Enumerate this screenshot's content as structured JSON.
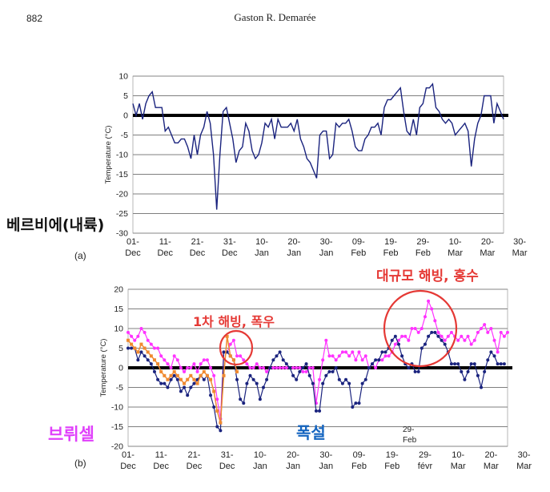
{
  "header": {
    "page_number": "882",
    "author": "Gaston R. Demarée"
  },
  "panel_a": {
    "label": "(a)",
    "ylabel": "Temperature (°C)",
    "annotation_left": "베르비에(내륙)"
  },
  "panel_b": {
    "label": "(b)",
    "ylabel": "Temperature (°C)",
    "annotation_magenta": "브뤼셀",
    "annotation_blue": "폭설",
    "annotation_mid": "1차 해빙, 폭우",
    "annotation_top": "대규모 해빙, 홍수",
    "inset_label_1": "29-",
    "inset_label_2": "Feb"
  },
  "colors": {
    "navy": "#1a237e",
    "magenta": "#ff33ff",
    "orange": "#f08a30",
    "red": "#e53935",
    "blue_text": "#1565c0",
    "magenta_text": "#e040fb"
  },
  "chart_data": [
    {
      "type": "line",
      "title": "",
      "xlabel": "",
      "ylabel": "Temperature (°C)",
      "ylim": [
        -30,
        10
      ],
      "yticks": [
        10,
        5,
        0,
        -5,
        -10,
        -15,
        -20,
        -25,
        -30
      ],
      "xtick_labels": [
        [
          "01-",
          "Dec"
        ],
        [
          "11-",
          "Dec"
        ],
        [
          "21-",
          "Dec"
        ],
        [
          "31-",
          "Dec"
        ],
        [
          "10-",
          "Jan"
        ],
        [
          "20-",
          "Jan"
        ],
        [
          "30-",
          "Jan"
        ],
        [
          "09-",
          "Feb"
        ],
        [
          "19-",
          "Feb"
        ],
        [
          "29-",
          "Feb"
        ],
        [
          "10-",
          "Mar"
        ],
        [
          "20-",
          "Mar"
        ],
        [
          "30-",
          "Mar"
        ]
      ],
      "grid": true,
      "series": [
        {
          "values": [
            3,
            0,
            3,
            -1,
            3,
            5,
            6,
            2,
            2,
            2,
            -4,
            -3,
            -5,
            -7,
            -7,
            -6,
            -6,
            -8,
            -11,
            -5,
            -10,
            -5,
            -3,
            1,
            -2,
            -10,
            -24,
            -10,
            1,
            2,
            -2,
            -6,
            -12,
            -9,
            -8,
            -2,
            -4,
            -9,
            -11,
            -10,
            -7,
            -2,
            -3,
            -1,
            -6,
            -1,
            -3,
            -3,
            -3,
            -2,
            -4,
            -1,
            -6,
            -8,
            -11,
            -12,
            -14,
            -16,
            -5,
            -4,
            -4,
            -11,
            -10,
            -2,
            -3,
            -2,
            -2,
            -1,
            -4,
            -8,
            -9,
            -9,
            -6,
            -5,
            -3,
            -3,
            -2,
            -5,
            2,
            4,
            4,
            5,
            6,
            7,
            1,
            -4,
            -5,
            -1,
            -5,
            2,
            3,
            7,
            7,
            8,
            2,
            1,
            -1,
            -2,
            -1,
            -2,
            -5,
            -4,
            -3,
            -2,
            -4,
            -13,
            -6,
            -2,
            0,
            5,
            5,
            5,
            -2,
            3,
            1,
            -1
          ]
        }
      ]
    },
    {
      "type": "line",
      "title": "",
      "xlabel": "",
      "ylabel": "Temperature (°C)",
      "ylim": [
        -20,
        20
      ],
      "yticks": [
        20,
        15,
        10,
        5,
        0,
        -5,
        -10,
        -15,
        -20
      ],
      "xtick_labels": [
        [
          "01-",
          "Dec"
        ],
        [
          "11-",
          "Dec"
        ],
        [
          "21-",
          "Dec"
        ],
        [
          "31-",
          "Dec"
        ],
        [
          "10-",
          "Jan"
        ],
        [
          "20-",
          "Jan"
        ],
        [
          "30-",
          "Jan"
        ],
        [
          "09-",
          "Feb"
        ],
        [
          "19-",
          "Feb"
        ],
        [
          "29-",
          "févr"
        ],
        [
          "10-",
          "Mar"
        ],
        [
          "20-",
          "Mar"
        ],
        [
          "30-",
          "Mar"
        ]
      ],
      "grid": true,
      "series": [
        {
          "values": [
            9,
            8,
            7,
            8,
            10,
            9,
            7,
            6,
            5,
            5,
            3,
            2,
            1,
            0,
            3,
            2,
            0,
            -1,
            0,
            0,
            1,
            -1,
            1,
            2,
            2,
            0,
            -2,
            -8,
            -13,
            4,
            4,
            6,
            7,
            3,
            3,
            2,
            1,
            0,
            0,
            1,
            0,
            0,
            -1,
            0,
            0,
            0,
            0,
            0,
            0,
            0,
            0,
            0,
            0,
            -1,
            -1,
            0,
            0,
            -9,
            -3,
            2,
            7,
            3,
            3,
            2,
            3,
            4,
            4,
            3,
            4,
            2,
            4,
            2,
            3,
            0,
            1,
            0,
            2,
            2,
            3,
            3,
            4,
            6,
            7,
            8,
            8,
            7,
            10,
            10,
            9,
            10,
            13,
            17,
            15,
            12,
            9,
            8,
            7,
            8,
            9,
            8,
            7,
            8,
            7,
            8,
            6,
            7,
            9,
            10,
            11,
            9,
            10,
            7,
            4,
            9,
            8,
            9
          ]
        },
        {
          "values": [
            5,
            5,
            5,
            2,
            4,
            3,
            2,
            1,
            -1,
            -3,
            -4,
            -4,
            -5,
            -3,
            -2,
            -3,
            -6,
            -5,
            -7,
            -5,
            -4,
            -3,
            -2,
            -3,
            -2,
            -7,
            -10,
            -15,
            -16,
            4,
            4,
            3,
            2,
            -3,
            -8,
            -9,
            -4,
            -2,
            -3,
            -4,
            -8,
            -5,
            -3,
            0,
            2,
            3,
            4,
            2,
            1,
            0,
            -2,
            -3,
            -1,
            0,
            1,
            -2,
            -4,
            -11,
            -11,
            -4,
            -2,
            -1,
            -1,
            0,
            -3,
            -4,
            -3,
            -4,
            -10,
            -9,
            -9,
            -4,
            -3,
            0,
            1,
            2,
            2,
            4,
            4,
            5,
            7,
            8,
            6,
            3,
            1,
            0,
            1,
            -1,
            -1,
            5,
            6,
            8,
            9,
            9,
            8,
            7,
            6,
            4,
            1,
            1,
            1,
            -1,
            -3,
            -1,
            1,
            1,
            -2,
            -5,
            -1,
            2,
            4,
            3,
            1,
            1,
            1
          ]
        },
        {
          "values": [
            7,
            6,
            5,
            4,
            6,
            5,
            4,
            3,
            2,
            1,
            -1,
            -2,
            -3,
            -2,
            -1,
            -2,
            -3,
            -4,
            -3,
            -2,
            -3,
            -4,
            -2,
            -1,
            -2,
            -3,
            -6,
            -11,
            -14,
            -2,
            8,
            3,
            2,
            -1
          ]
        }
      ]
    }
  ]
}
